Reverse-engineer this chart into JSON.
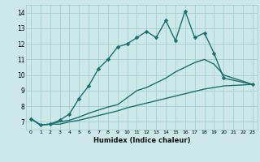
{
  "title": "",
  "xlabel": "Humidex (Indice chaleur)",
  "ylabel": "",
  "xlim": [
    -0.5,
    23.5
  ],
  "ylim": [
    6.5,
    14.5
  ],
  "xticks": [
    0,
    1,
    2,
    3,
    4,
    5,
    6,
    7,
    8,
    9,
    10,
    11,
    12,
    13,
    14,
    15,
    16,
    17,
    18,
    19,
    20,
    21,
    22,
    23
  ],
  "yticks": [
    7,
    8,
    9,
    10,
    11,
    12,
    13,
    14
  ],
  "bg_color": "#cce8e8",
  "line_color": "#1a7070",
  "series": [
    {
      "x": [
        0,
        1,
        2,
        3,
        4,
        5,
        6,
        7,
        8,
        9,
        10,
        11,
        12,
        13,
        14,
        15,
        16,
        17,
        18,
        19,
        20,
        23
      ],
      "y": [
        7.2,
        6.8,
        6.85,
        6.85,
        7.0,
        7.1,
        7.25,
        7.4,
        7.55,
        7.7,
        7.9,
        8.05,
        8.2,
        8.35,
        8.5,
        8.65,
        8.8,
        8.95,
        9.1,
        9.2,
        9.3,
        9.4
      ],
      "marker": null,
      "lw": 1.0
    },
    {
      "x": [
        0,
        1,
        2,
        3,
        4,
        5,
        6,
        7,
        8,
        9,
        10,
        11,
        12,
        13,
        14,
        15,
        16,
        17,
        18,
        19,
        20,
        23
      ],
      "y": [
        7.2,
        6.8,
        6.85,
        7.0,
        7.1,
        7.3,
        7.55,
        7.75,
        7.95,
        8.1,
        8.55,
        9.0,
        9.2,
        9.5,
        9.8,
        10.2,
        10.5,
        10.8,
        11.0,
        10.7,
        10.0,
        9.4
      ],
      "marker": null,
      "lw": 1.0
    },
    {
      "x": [
        0,
        1,
        2,
        3,
        4,
        5,
        6,
        7,
        8,
        9,
        10,
        11,
        12,
        13,
        14,
        15,
        16,
        17,
        18,
        19,
        20,
        23
      ],
      "y": [
        7.2,
        6.8,
        6.85,
        7.1,
        7.5,
        8.5,
        9.3,
        10.4,
        11.0,
        11.8,
        12.0,
        12.4,
        12.8,
        12.4,
        13.5,
        12.2,
        14.1,
        12.4,
        12.7,
        11.4,
        9.8,
        9.4
      ],
      "marker": "D",
      "lw": 1.0
    }
  ],
  "grid_color": "#a0cccc",
  "marker_size": 2.5
}
